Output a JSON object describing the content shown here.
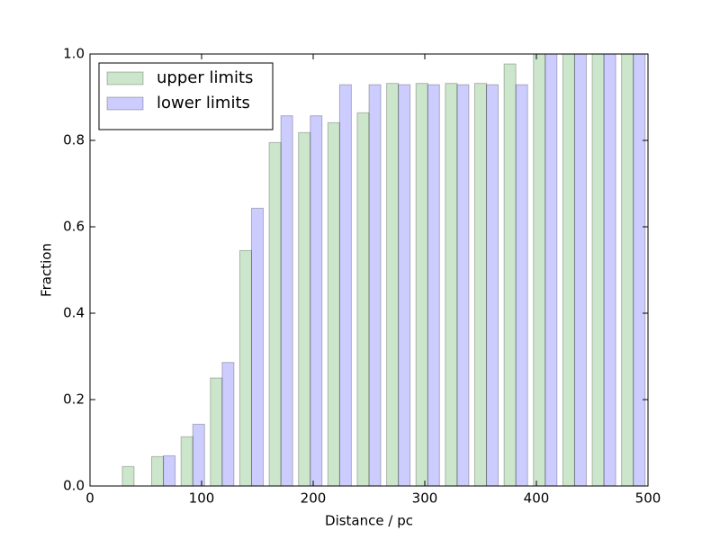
{
  "chart_data": {
    "type": "histogram",
    "xlabel": "Distance / pc",
    "ylabel": "Fraction",
    "bins": [
      0,
      26.32,
      52.63,
      78.95,
      105.26,
      131.58,
      157.89,
      184.21,
      210.53,
      236.84,
      263.16,
      289.47,
      315.79,
      342.11,
      368.42,
      394.74,
      421.05,
      447.37,
      473.68,
      500
    ],
    "series": [
      {
        "name": "upper limits",
        "color": "#008000",
        "values": [
          0,
          0.045,
          0.068,
          0.114,
          0.25,
          0.545,
          0.795,
          0.818,
          0.841,
          0.864,
          0.932,
          0.932,
          0.932,
          0.932,
          0.977,
          1.0,
          1.0,
          1.0,
          1.0
        ]
      },
      {
        "name": "lower limits",
        "color": "#0000ff",
        "values": [
          0,
          0,
          0.07,
          0.143,
          0.286,
          0.643,
          0.857,
          0.857,
          0.929,
          0.929,
          0.929,
          0.929,
          0.929,
          0.929,
          0.929,
          1.0,
          1.0,
          1.0,
          1.0
        ]
      }
    ],
    "xlim": [
      0,
      500
    ],
    "xticks": [
      0,
      100,
      200,
      300,
      400,
      500
    ],
    "ylim": [
      0,
      1
    ],
    "yticks": [
      {
        "value": 0,
        "label": "0.0"
      },
      {
        "value": 0.2,
        "label": "0.2"
      },
      {
        "value": 0.4,
        "label": "0.4"
      },
      {
        "value": 0.6,
        "label": "0.6"
      },
      {
        "value": 0.8,
        "label": "0.8"
      },
      {
        "value": 1.0,
        "label": "1.0"
      }
    ],
    "legend": "upper left"
  }
}
